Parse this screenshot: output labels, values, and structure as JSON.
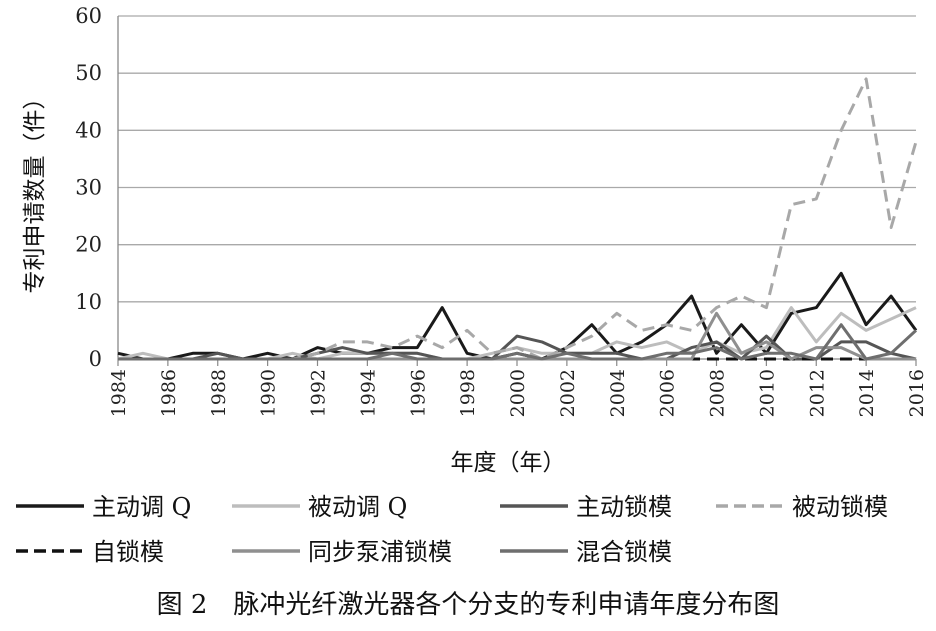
{
  "chart_data": {
    "type": "line",
    "xlabel": "年度（年）",
    "ylabel": "专利申请数量（件）",
    "ylim": [
      0,
      60
    ],
    "yticks": [
      0,
      10,
      20,
      30,
      40,
      50,
      60
    ],
    "xticks": [
      "1984",
      "1986",
      "1988",
      "1990",
      "1992",
      "1994",
      "1996",
      "1998",
      "2000",
      "2002",
      "2004",
      "2006",
      "2008",
      "2010",
      "2012",
      "2014",
      "2016"
    ],
    "x": [
      1984,
      1985,
      1986,
      1987,
      1988,
      1989,
      1990,
      1991,
      1992,
      1993,
      1994,
      1995,
      1996,
      1997,
      1998,
      1999,
      2000,
      2001,
      2002,
      2003,
      2004,
      2005,
      2006,
      2007,
      2008,
      2009,
      2010,
      2011,
      2012,
      2013,
      2014,
      2015,
      2016
    ],
    "grid": "horizontal",
    "legend_position": "bottom",
    "series": [
      {
        "name": "主动调 Q",
        "color": "#1a1a1a",
        "dash": "solid",
        "values": [
          1,
          0,
          0,
          1,
          1,
          0,
          1,
          0,
          2,
          1,
          1,
          2,
          2,
          9,
          1,
          0,
          1,
          0,
          2,
          6,
          1,
          3,
          6,
          11,
          1,
          6,
          1,
          8,
          9,
          15,
          6,
          11,
          5
        ]
      },
      {
        "name": "被动调 Q",
        "color": "#bdbdbd",
        "dash": "solid",
        "values": [
          0,
          1,
          0,
          0,
          0,
          0,
          0,
          1,
          0,
          1,
          1,
          1,
          1,
          0,
          0,
          1,
          2,
          1,
          1,
          1,
          3,
          2,
          3,
          1,
          3,
          1,
          2,
          9,
          3,
          8,
          5,
          7,
          9
        ]
      },
      {
        "name": "主动锁模",
        "color": "#555555",
        "dash": "solid",
        "values": [
          0,
          0,
          0,
          0,
          1,
          0,
          0,
          0,
          1,
          2,
          1,
          1,
          1,
          0,
          0,
          0,
          4,
          3,
          1,
          1,
          1,
          0,
          0,
          2,
          3,
          0,
          4,
          0,
          0,
          3,
          3,
          1,
          0
        ]
      },
      {
        "name": "被动锁模",
        "color": "#a8a8a8",
        "dash": "dashed",
        "values": [
          0,
          0,
          0,
          0,
          0,
          0,
          0,
          0,
          1,
          3,
          3,
          2,
          4,
          2,
          5,
          1,
          2,
          0,
          2,
          4,
          8,
          5,
          6,
          5,
          9,
          11,
          9,
          27,
          28,
          40,
          49,
          23,
          38
        ]
      },
      {
        "name": "自锁模",
        "color": "#111111",
        "dash": "dashed",
        "values": [
          0,
          0,
          0,
          0,
          0,
          0,
          0,
          0,
          0,
          0,
          0,
          0,
          0,
          0,
          0,
          0,
          0,
          0,
          0,
          0,
          0,
          0,
          0,
          0,
          0,
          0,
          0,
          0,
          0,
          0,
          0,
          0,
          0
        ]
      },
      {
        "name": "同步泵浦锁模",
        "color": "#8f8f8f",
        "dash": "solid",
        "values": [
          0,
          0,
          0,
          0,
          0,
          0,
          0,
          0,
          0,
          0,
          0,
          0,
          0,
          0,
          0,
          0,
          0,
          0,
          0,
          0,
          0,
          0,
          0,
          0,
          8,
          1,
          3,
          0,
          2,
          2,
          0,
          0,
          0
        ]
      },
      {
        "name": "混合锁模",
        "color": "#6e6e6e",
        "dash": "solid",
        "values": [
          0,
          0,
          0,
          0,
          0,
          0,
          0,
          0,
          0,
          0,
          0,
          1,
          0,
          0,
          0,
          0,
          1,
          0,
          1,
          0,
          0,
          0,
          1,
          1,
          2,
          0,
          1,
          1,
          0,
          6,
          0,
          1,
          5
        ]
      }
    ],
    "caption": "图 2　脉冲光纤激光器各个分支的专利申请年度分布图"
  }
}
